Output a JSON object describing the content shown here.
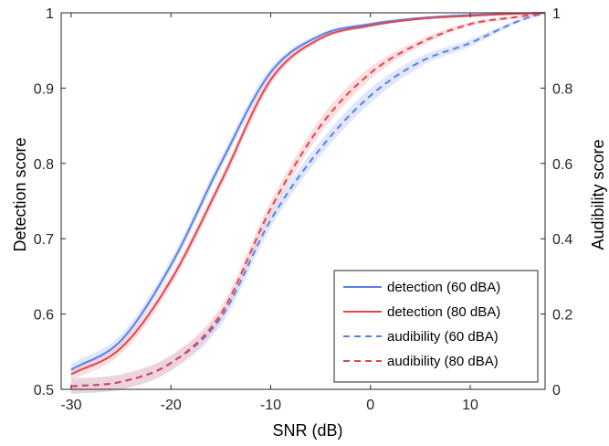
{
  "chart_data": {
    "type": "line",
    "title": "",
    "xlabel": "SNR (dB)",
    "ylabel_left": "Detection score",
    "ylabel_right": "Audibility score",
    "xlim": [
      -31,
      17.5
    ],
    "ylim_left": [
      0.5,
      1
    ],
    "ylim_right": [
      0,
      1
    ],
    "x_ticks": [
      -30,
      -20,
      -10,
      0,
      10
    ],
    "y_left_ticks": [
      0.5,
      0.6,
      0.7,
      0.8,
      0.9,
      1
    ],
    "y_right_ticks": [
      0,
      0.2,
      0.4,
      0.6,
      0.8,
      1
    ],
    "grid": false,
    "legend_position": "bottom-right",
    "series": [
      {
        "name": "detection (60 dBA)",
        "axis": "left",
        "color": "#5b7fe6",
        "band_color": "#c5d3f7",
        "style": "solid",
        "points": [
          [
            -30,
            0.526
          ],
          [
            -25,
            0.565
          ],
          [
            -20,
            0.665
          ],
          [
            -15,
            0.8
          ],
          [
            -10,
            0.921
          ],
          [
            -5,
            0.97
          ],
          [
            0,
            0.985
          ],
          [
            5,
            0.993
          ],
          [
            10,
            0.997
          ],
          [
            15,
            0.999
          ],
          [
            17.5,
            1.0
          ]
        ],
        "band_halfwidth": 0.008
      },
      {
        "name": "detection (80 dBA)",
        "axis": "left",
        "color": "#e0464e",
        "band_color": "#f6c3c6",
        "style": "solid",
        "points": [
          [
            -30,
            0.52
          ],
          [
            -25,
            0.555
          ],
          [
            -20,
            0.645
          ],
          [
            -15,
            0.775
          ],
          [
            -10,
            0.911
          ],
          [
            -5,
            0.966
          ],
          [
            0,
            0.983
          ],
          [
            5,
            0.992
          ],
          [
            10,
            0.996
          ],
          [
            15,
            0.999
          ],
          [
            17.5,
            1.0
          ]
        ],
        "band_halfwidth": 0.008
      },
      {
        "name": "audibility (60 dBA)",
        "axis": "right",
        "color": "#5b7fe6",
        "band_color": "#c5d3f7",
        "style": "dashed",
        "points": [
          [
            -30,
            0.008
          ],
          [
            -25,
            0.02
          ],
          [
            -20,
            0.07
          ],
          [
            -15,
            0.19
          ],
          [
            -10,
            0.45
          ],
          [
            -5,
            0.64
          ],
          [
            0,
            0.78
          ],
          [
            5,
            0.87
          ],
          [
            10,
            0.92
          ],
          [
            15,
            0.98
          ],
          [
            17.5,
            1.0
          ]
        ],
        "band_halfwidth": 0.02
      },
      {
        "name": "audibility (80 dBA)",
        "axis": "right",
        "color": "#e0464e",
        "band_color": "#f6c3c6",
        "style": "dashed",
        "points": [
          [
            -30,
            0.008
          ],
          [
            -25,
            0.02
          ],
          [
            -20,
            0.07
          ],
          [
            -15,
            0.2
          ],
          [
            -10,
            0.48
          ],
          [
            -5,
            0.7
          ],
          [
            0,
            0.84
          ],
          [
            5,
            0.92
          ],
          [
            10,
            0.97
          ],
          [
            15,
            0.99
          ],
          [
            17.5,
            1.0
          ]
        ],
        "band_halfwidth": 0.02
      }
    ]
  }
}
